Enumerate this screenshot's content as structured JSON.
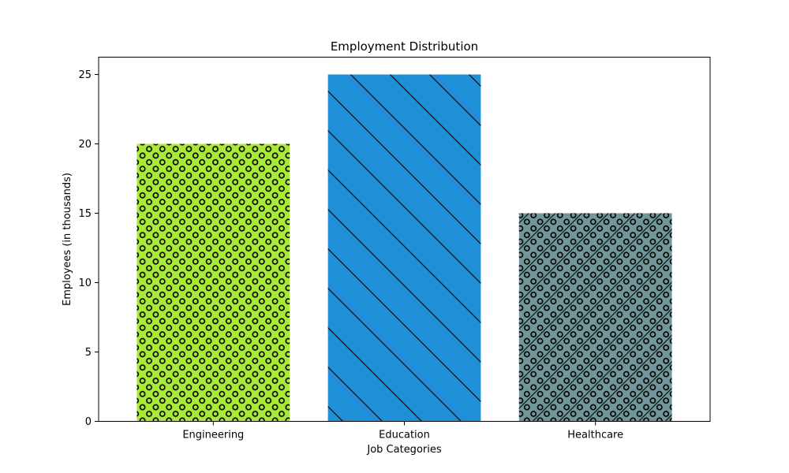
{
  "chart_data": {
    "type": "bar",
    "title": "Employment Distribution",
    "xlabel": "Job Categories",
    "ylabel": "Employees (in thousands)",
    "categories": [
      "Engineering",
      "Education",
      "Healthcare"
    ],
    "values": [
      20,
      25,
      15
    ],
    "ylim": [
      0,
      26.25
    ],
    "yticks": [
      0,
      5,
      10,
      15,
      20,
      25
    ],
    "grid": false,
    "bar_colors": [
      "#a9e938",
      "#1f8fd8",
      "#72979a"
    ],
    "bar_patterns": [
      "circles",
      "diagonal-backslash",
      "circles-and-diagonal-slash"
    ],
    "edge_color": "#000000"
  }
}
